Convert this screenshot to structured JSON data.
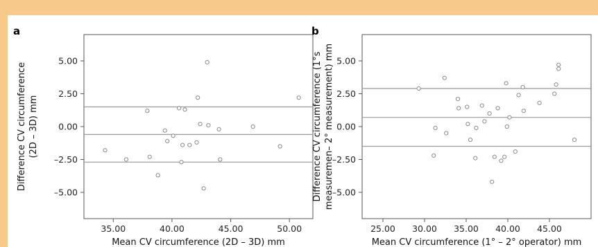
{
  "frame": {
    "accent": "#f7c98a"
  },
  "chart_data": [
    {
      "type": "scatter",
      "panel_label": "a",
      "xlabel": "Mean CV circumference (2D – 3D) mm",
      "ylabel": [
        "Difference CV circumference",
        "(2D – 3D) mm"
      ],
      "xlim": [
        32.5,
        52.0
      ],
      "ylim": [
        -7.0,
        7.0
      ],
      "xticks": [
        35,
        40,
        45,
        50
      ],
      "xtick_labels": [
        "35.00",
        "40.00",
        "45.00",
        "50.00"
      ],
      "yticks": [
        5,
        2.5,
        0,
        -2.5,
        -5
      ],
      "ytick_labels": [
        "5.00",
        "2.50",
        "0.00",
        "–2.50",
        "–5.00"
      ],
      "reference_lines": [
        1.5,
        -0.6,
        -2.7
      ],
      "grid": false,
      "points": [
        {
          "x": 34.3,
          "y": -1.8
        },
        {
          "x": 36.1,
          "y": -2.5
        },
        {
          "x": 37.9,
          "y": 1.2
        },
        {
          "x": 38.1,
          "y": -2.3
        },
        {
          "x": 38.8,
          "y": -3.7
        },
        {
          "x": 39.4,
          "y": -0.3
        },
        {
          "x": 39.6,
          "y": -1.1
        },
        {
          "x": 40.1,
          "y": -0.7
        },
        {
          "x": 40.6,
          "y": 1.4
        },
        {
          "x": 40.8,
          "y": -2.7
        },
        {
          "x": 40.9,
          "y": -1.4
        },
        {
          "x": 41.1,
          "y": 1.3
        },
        {
          "x": 41.5,
          "y": -1.4
        },
        {
          "x": 42.1,
          "y": -1.2
        },
        {
          "x": 42.2,
          "y": 2.2
        },
        {
          "x": 42.4,
          "y": 0.2
        },
        {
          "x": 42.7,
          "y": -4.7
        },
        {
          "x": 43.0,
          "y": 4.9
        },
        {
          "x": 43.1,
          "y": 0.1
        },
        {
          "x": 44.0,
          "y": -0.2
        },
        {
          "x": 44.1,
          "y": -2.5
        },
        {
          "x": 46.9,
          "y": 0.0
        },
        {
          "x": 49.2,
          "y": -1.5
        },
        {
          "x": 50.8,
          "y": 2.2
        }
      ]
    },
    {
      "type": "scatter",
      "panel_label": "b",
      "xlabel": "Mean CV circumference (1° – 2° operator) mm",
      "ylabel": [
        "Difference CV circumference (1°s",
        "measuremen– 2° measurement) mm"
      ],
      "xlim": [
        22.5,
        50.0
      ],
      "ylim": [
        -7.0,
        7.0
      ],
      "xticks": [
        25,
        30,
        35,
        40,
        45
      ],
      "xtick_labels": [
        "25.00",
        "30.00",
        "35.00",
        "40.00",
        "45.00"
      ],
      "yticks": [
        5,
        2.5,
        0,
        -2.5,
        -5
      ],
      "ytick_labels": [
        "5.00",
        "2.50",
        "0.00",
        "–2.50",
        "–5.00"
      ],
      "reference_lines": [
        2.9,
        0.7,
        -1.5
      ],
      "grid": false,
      "points": [
        {
          "x": 29.3,
          "y": 2.9
        },
        {
          "x": 31.1,
          "y": -2.2
        },
        {
          "x": 31.3,
          "y": -0.1
        },
        {
          "x": 32.4,
          "y": 3.7
        },
        {
          "x": 32.6,
          "y": -0.5
        },
        {
          "x": 34.0,
          "y": 2.1
        },
        {
          "x": 34.1,
          "y": 1.4
        },
        {
          "x": 35.1,
          "y": 1.5
        },
        {
          "x": 35.2,
          "y": 0.2
        },
        {
          "x": 35.5,
          "y": -1.0
        },
        {
          "x": 36.1,
          "y": -2.4
        },
        {
          "x": 36.2,
          "y": -0.1
        },
        {
          "x": 36.9,
          "y": 1.6
        },
        {
          "x": 37.2,
          "y": 0.4
        },
        {
          "x": 37.8,
          "y": 1.0
        },
        {
          "x": 38.1,
          "y": -4.2
        },
        {
          "x": 38.4,
          "y": -2.3
        },
        {
          "x": 38.8,
          "y": 1.4
        },
        {
          "x": 39.2,
          "y": -2.6
        },
        {
          "x": 39.6,
          "y": -2.3
        },
        {
          "x": 39.8,
          "y": 3.3
        },
        {
          "x": 39.9,
          "y": 0.0
        },
        {
          "x": 40.2,
          "y": 0.7
        },
        {
          "x": 40.9,
          "y": -1.9
        },
        {
          "x": 41.3,
          "y": 2.4
        },
        {
          "x": 41.8,
          "y": 3.0
        },
        {
          "x": 41.9,
          "y": 1.2
        },
        {
          "x": 43.8,
          "y": 1.8
        },
        {
          "x": 45.6,
          "y": 2.5
        },
        {
          "x": 45.8,
          "y": 3.2
        },
        {
          "x": 46.1,
          "y": 4.7
        },
        {
          "x": 46.1,
          "y": 4.4
        },
        {
          "x": 48.0,
          "y": -1.0
        }
      ]
    }
  ]
}
